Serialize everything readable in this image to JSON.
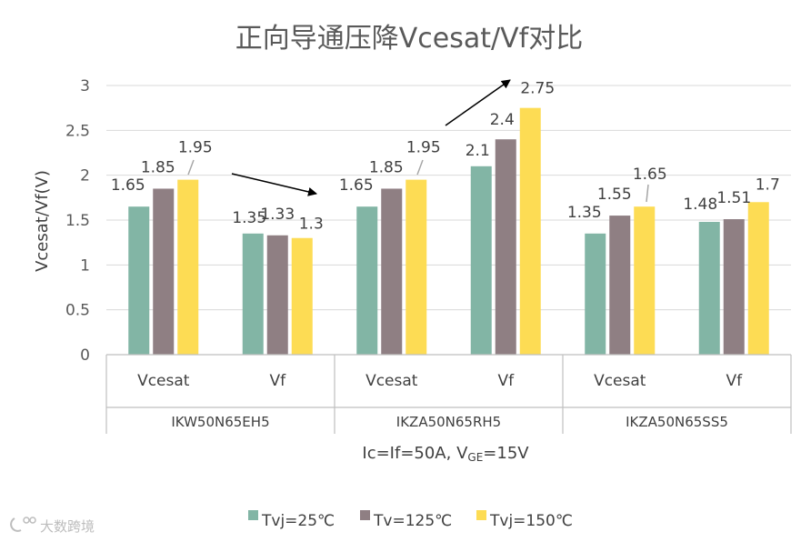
{
  "chart_data": {
    "type": "bar",
    "title": "正向导通压降Vcesat/Vf对比",
    "ylabel": "Vcesat/Vf(V)",
    "xlabel": "Ic=If=50A, VGE=15V",
    "xlabel_main": "Ic=If=50A, V",
    "xlabel_sub": "GE",
    "xlabel_tail": "=15V",
    "ylim": [
      0,
      3
    ],
    "yticks": [
      0,
      0.5,
      1,
      1.5,
      2,
      2.5,
      3
    ],
    "ytick_labels": [
      "0",
      "0.5",
      "1",
      "1.5",
      "2",
      "2.5",
      "3"
    ],
    "grid": true,
    "legend_position": "bottom",
    "groups": [
      "IKW50N65EH5",
      "IKZA50N65RH5",
      "IKZA50N65SS5"
    ],
    "categories": [
      "Vcesat",
      "Vf",
      "Vcesat",
      "Vf",
      "Vcesat",
      "Vf"
    ],
    "series": [
      {
        "name": "Tvj=25℃",
        "color": "#82b5a5",
        "values": [
          1.65,
          1.35,
          1.65,
          2.1,
          1.35,
          1.48
        ],
        "labels": [
          "1.65",
          "1.35",
          "1.65",
          "2.1",
          "1.35",
          "1.48"
        ]
      },
      {
        "name": "Tv=125℃",
        "color": "#8f7f83",
        "values": [
          1.85,
          1.33,
          1.85,
          2.4,
          1.55,
          1.51
        ],
        "labels": [
          "1.85",
          "1.33",
          "1.85",
          "2.4",
          "1.55",
          "1.51"
        ]
      },
      {
        "name": "Tvj=150℃",
        "color": "#fddc54",
        "values": [
          1.95,
          1.3,
          1.95,
          2.75,
          1.65,
          1.7
        ],
        "labels": [
          "1.95",
          "1.3",
          "1.95",
          "2.75",
          "1.65",
          "1.7"
        ]
      }
    ]
  },
  "watermark": "大数跨境",
  "colors": {
    "axis": "#bfbfbf",
    "grid": "#d9d9d9",
    "text": "#404040",
    "arrow": "#000000"
  }
}
